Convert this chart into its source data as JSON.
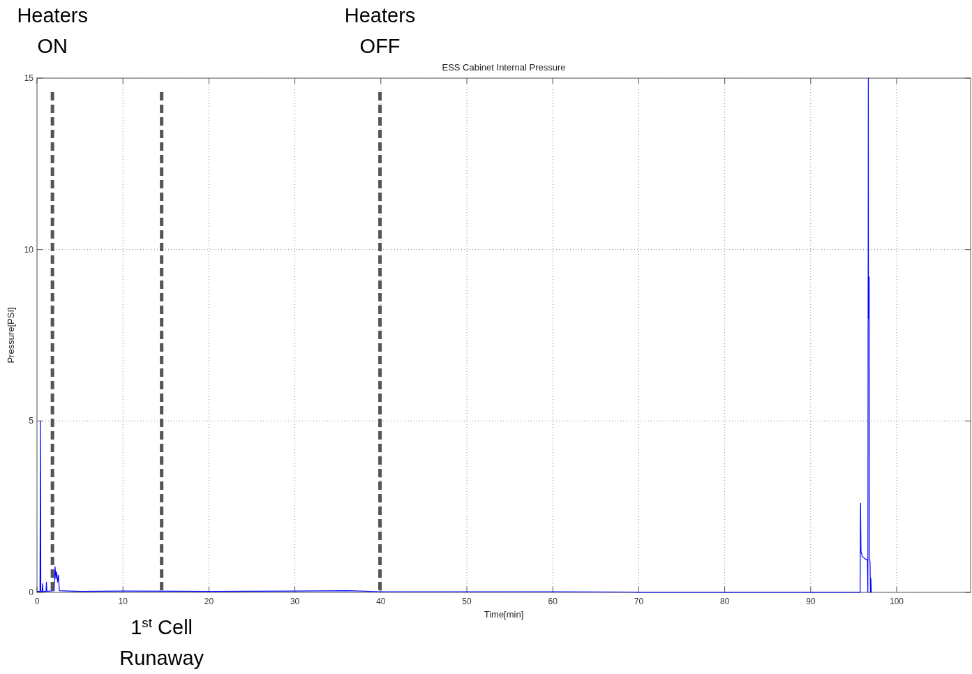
{
  "chart_data": {
    "type": "line",
    "title": "ESS Cabinet Internal Pressure",
    "xlabel": "Time[min]",
    "ylabel": "Pressure[PSI]",
    "xlim": [
      0,
      108.6
    ],
    "xticks": [
      0,
      10,
      20,
      30,
      40,
      50,
      60,
      70,
      80,
      90,
      100
    ],
    "ylim": [
      0,
      15
    ],
    "yticks": [
      0,
      5,
      10,
      15
    ],
    "grid": true,
    "line_style": "solid",
    "series": [
      {
        "color": "#0000ff",
        "x": [
          0,
          0.35,
          0.4,
          0.45,
          0.6,
          0.65,
          0.7,
          1.05,
          1.1,
          1.15,
          2.0,
          2.1,
          2.2,
          2.3,
          2.4,
          2.5,
          2.6,
          5,
          10,
          20,
          30,
          36,
          40,
          50,
          60,
          69,
          70,
          95.75,
          95.8,
          95.85,
          96,
          96.3,
          96.6,
          96.65,
          96.7,
          96.72,
          96.8,
          96.82,
          96.9,
          96.95,
          97.0,
          97.05
        ],
        "values": [
          0.03,
          0.03,
          5,
          0.03,
          0.03,
          0.25,
          0.03,
          0.03,
          0.3,
          0.03,
          0.05,
          0.75,
          0.4,
          0.6,
          0.3,
          0.5,
          0.05,
          0.03,
          0.04,
          0.03,
          0.04,
          0.05,
          0.02,
          0.02,
          0.02,
          0.01,
          0,
          0,
          2.6,
          1.2,
          1.05,
          0.98,
          0.95,
          0,
          15,
          8,
          9.2,
          1,
          0.9,
          0,
          0.4,
          0
        ]
      }
    ],
    "ref_lines": [
      {
        "axis": "x",
        "value": 1.8,
        "label": "Heaters ON",
        "color": "#555555",
        "line_style": "dashed"
      },
      {
        "axis": "x",
        "value": 14.5,
        "label": "1$^{st}$ Cell Runaway",
        "color": "#555555",
        "line_style": "dashed"
      },
      {
        "axis": "x",
        "value": 39.9,
        "label": "Heaters OFF",
        "color": "#555555",
        "line_style": "dashed"
      }
    ]
  }
}
